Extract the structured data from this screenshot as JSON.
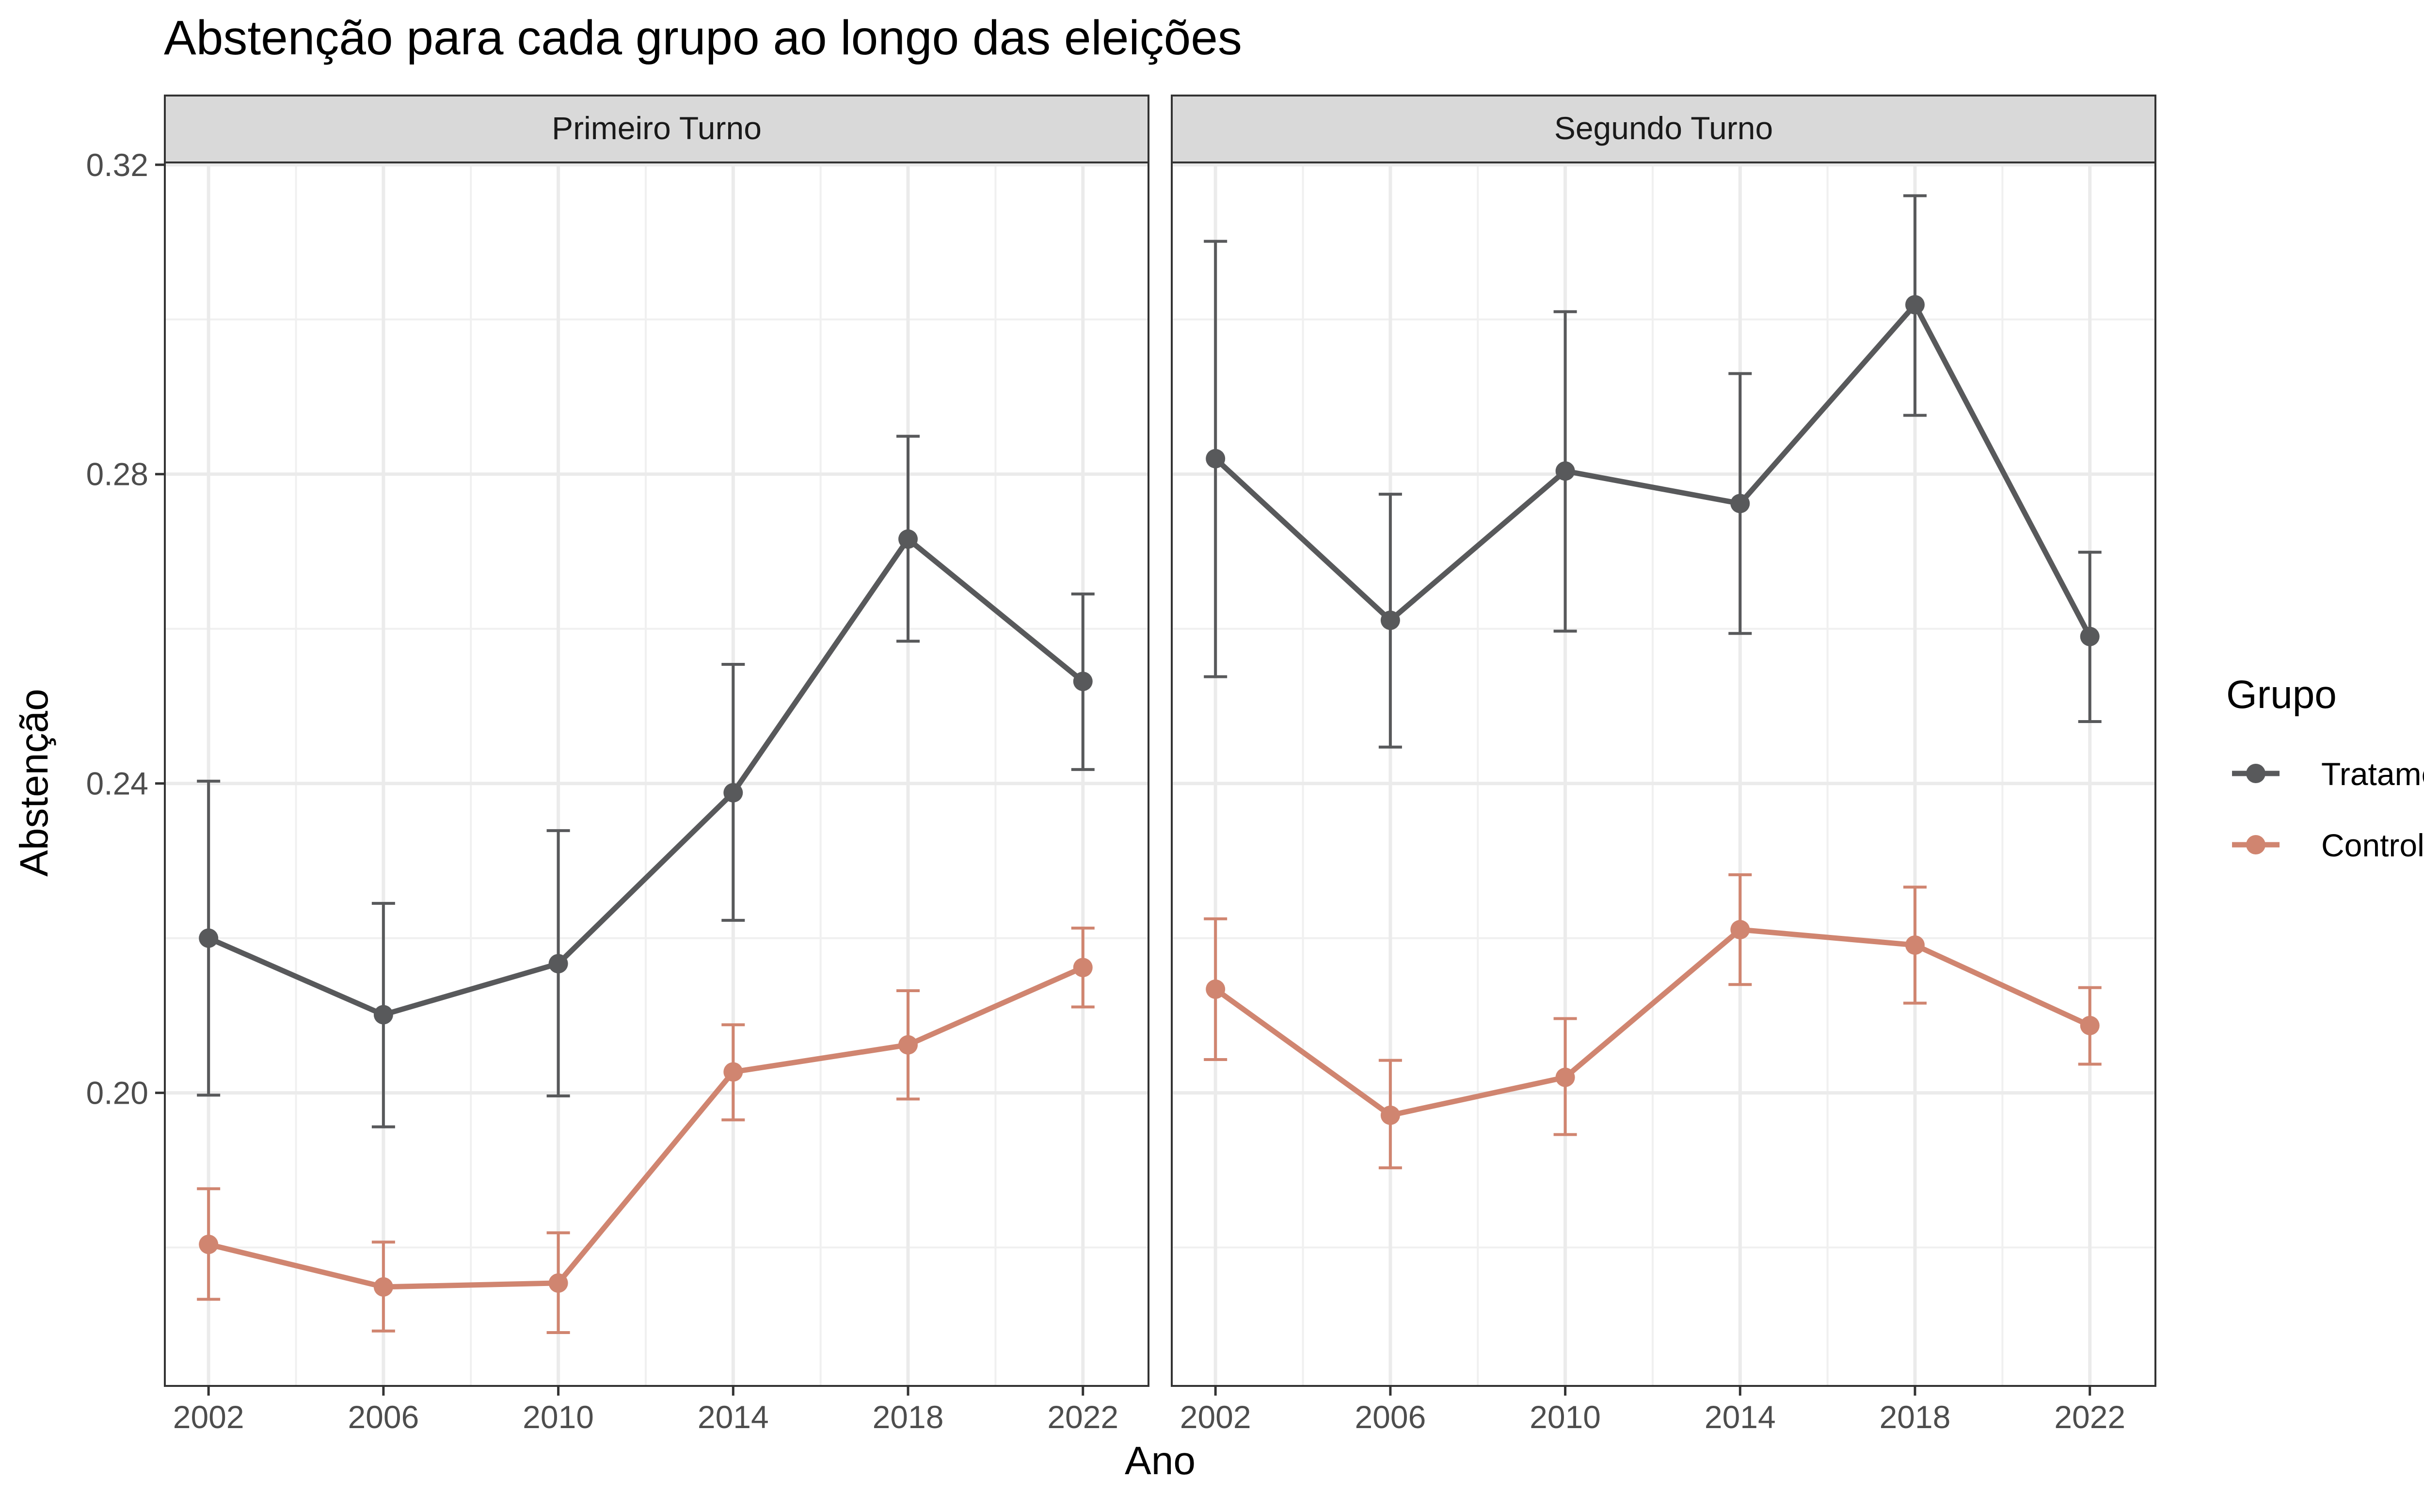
{
  "chart_data": {
    "type": "line",
    "title": "Abstenção para cada grupo ao longo das eleições",
    "xlabel": "Ano",
    "ylabel": "Abstenção",
    "x": [
      2002,
      2006,
      2010,
      2014,
      2018,
      2022
    ],
    "xlim": [
      2001,
      2023.5
    ],
    "ylim": [
      0.1621,
      0.3203
    ],
    "y_ticks": [
      0.2,
      0.24,
      0.28,
      0.32
    ],
    "y_tick_labels": [
      "0.20",
      "0.24",
      "0.28",
      "0.32"
    ],
    "x_tick_labels": [
      "2002",
      "2006",
      "2010",
      "2014",
      "2018",
      "2022"
    ],
    "grid": true,
    "legend": {
      "title": "Grupo",
      "position": "right",
      "entries": [
        "Tratamento",
        "Controle"
      ]
    },
    "colors": {
      "Tratamento": "#58595b",
      "Controle": "#d08570"
    },
    "facets": [
      {
        "label": "Primeiro Turno",
        "series": [
          {
            "name": "Tratamento",
            "values": [
              0.22,
              0.2101,
              0.2167,
              0.2388,
              0.2716,
              0.2532
            ],
            "lower": [
              0.1997,
              0.1956,
              0.1996,
              0.2223,
              0.2584,
              0.2418
            ],
            "upper": [
              0.2403,
              0.2245,
              0.2339,
              0.2554,
              0.2849,
              0.2645
            ]
          },
          {
            "name": "Controle",
            "values": [
              0.1804,
              0.1749,
              0.1754,
              0.2027,
              0.2062,
              0.2162
            ],
            "lower": [
              0.1733,
              0.1692,
              0.169,
              0.1965,
              0.1992,
              0.2111
            ],
            "upper": [
              0.1876,
              0.1807,
              0.1819,
              0.2088,
              0.2132,
              0.2213
            ]
          }
        ]
      },
      {
        "label": "Segundo Turno",
        "series": [
          {
            "name": "Tratamento",
            "values": [
              0.282,
              0.2611,
              0.2804,
              0.2762,
              0.3019,
              0.259
            ],
            "lower": [
              0.2538,
              0.2447,
              0.2597,
              0.2594,
              0.2876,
              0.248
            ],
            "upper": [
              0.3101,
              0.2774,
              0.301,
              0.293,
              0.316,
              0.2699
            ]
          },
          {
            "name": "Controle",
            "values": [
              0.2134,
              0.1971,
              0.202,
              0.2211,
              0.2191,
              0.2087
            ],
            "lower": [
              0.2043,
              0.1903,
              0.1946,
              0.214,
              0.2116,
              0.2037
            ],
            "upper": [
              0.2225,
              0.2042,
              0.2096,
              0.2282,
              0.2266,
              0.2136
            ]
          }
        ]
      }
    ]
  }
}
